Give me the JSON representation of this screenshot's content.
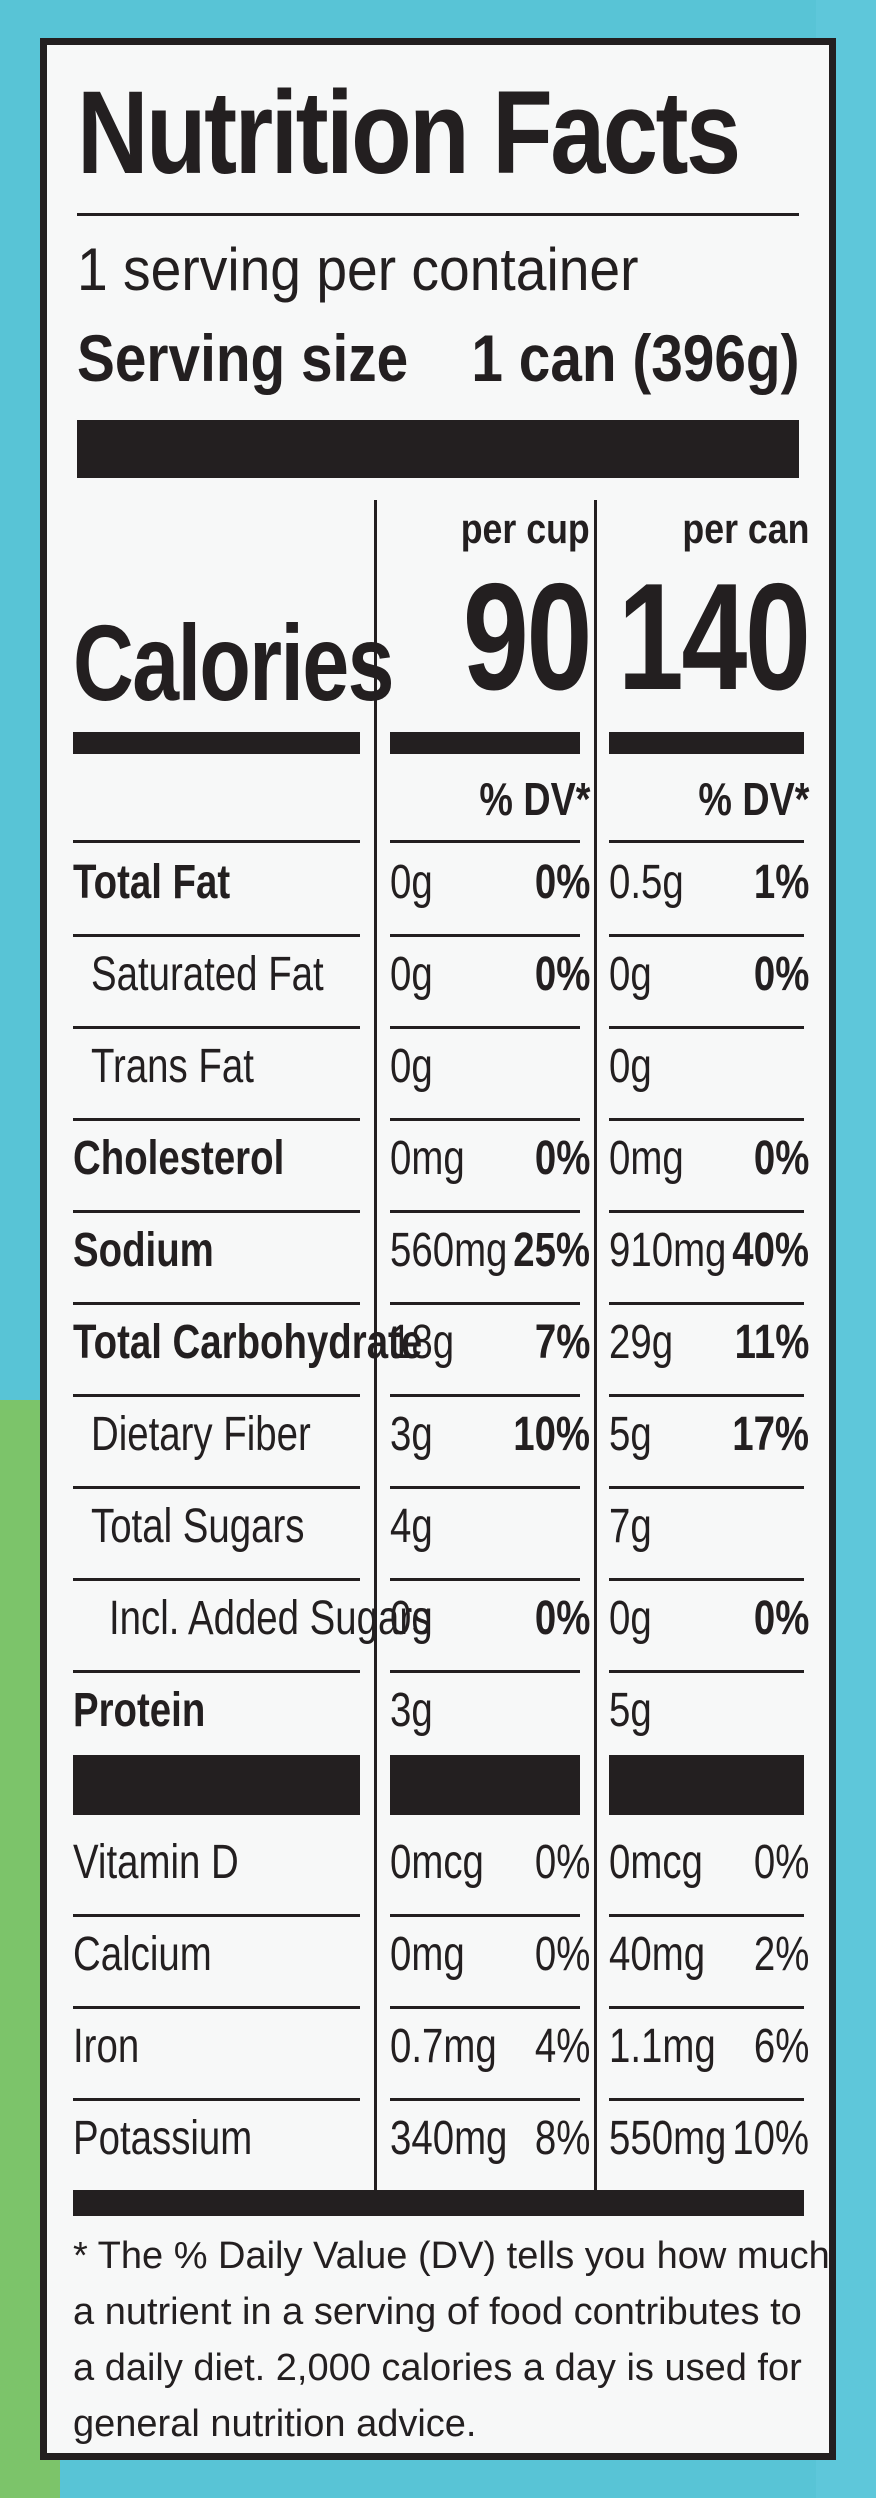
{
  "label": {
    "title": "Nutrition Facts",
    "servings_per_container": "1 serving per container",
    "serving_size_label": "Serving size",
    "serving_size_value": "1 can (396g)",
    "col_cup_header": "per cup",
    "col_can_header": "per can",
    "calories_label": "Calories",
    "calories_cup": "90",
    "calories_can": "140",
    "dv_header": "% DV*",
    "nutrients": [
      {
        "name": "Total Fat",
        "cup_amt": "0g",
        "cup_pct": "0%",
        "can_amt": "0.5g",
        "can_pct": "1%"
      },
      {
        "name": "Saturated Fat",
        "cup_amt": "0g",
        "cup_pct": "0%",
        "can_amt": "0g",
        "can_pct": "0%"
      },
      {
        "name": "Trans Fat",
        "cup_amt": "0g",
        "cup_pct": "",
        "can_amt": "0g",
        "can_pct": ""
      },
      {
        "name": "Cholesterol",
        "cup_amt": "0mg",
        "cup_pct": "0%",
        "can_amt": "0mg",
        "can_pct": "0%"
      },
      {
        "name": "Sodium",
        "cup_amt": "560mg",
        "cup_pct": "25%",
        "can_amt": "910mg",
        "can_pct": "40%"
      },
      {
        "name": "Total Carbohydrate",
        "cup_amt": "18g",
        "cup_pct": "7%",
        "can_amt": "29g",
        "can_pct": "11%"
      },
      {
        "name": "Dietary Fiber",
        "cup_amt": "3g",
        "cup_pct": "10%",
        "can_amt": "5g",
        "can_pct": "17%"
      },
      {
        "name": "Total Sugars",
        "cup_amt": "4g",
        "cup_pct": "",
        "can_amt": "7g",
        "can_pct": ""
      },
      {
        "name": "Incl. Added Sugars",
        "cup_amt": "0g",
        "cup_pct": "0%",
        "can_amt": "0g",
        "can_pct": "0%"
      },
      {
        "name": "Protein",
        "cup_amt": "3g",
        "cup_pct": "",
        "can_amt": "5g",
        "can_pct": ""
      }
    ],
    "vitamins": [
      {
        "name": "Vitamin D",
        "cup_amt": "0mcg",
        "cup_pct": "0%",
        "can_amt": "0mcg",
        "can_pct": "0%"
      },
      {
        "name": "Calcium",
        "cup_amt": "0mg",
        "cup_pct": "0%",
        "can_amt": "40mg",
        "can_pct": "2%"
      },
      {
        "name": "Iron",
        "cup_amt": "0.7mg",
        "cup_pct": "4%",
        "can_amt": "1.1mg",
        "can_pct": "6%"
      },
      {
        "name": "Potassium",
        "cup_amt": "340mg",
        "cup_pct": "8%",
        "can_amt": "550mg",
        "can_pct": "10%"
      }
    ],
    "footnote": "* The % Daily Value (DV) tells you how much a nutrient in a serving of food contributes to a daily diet. 2,000 calories a day is used for general nutrition advice."
  }
}
